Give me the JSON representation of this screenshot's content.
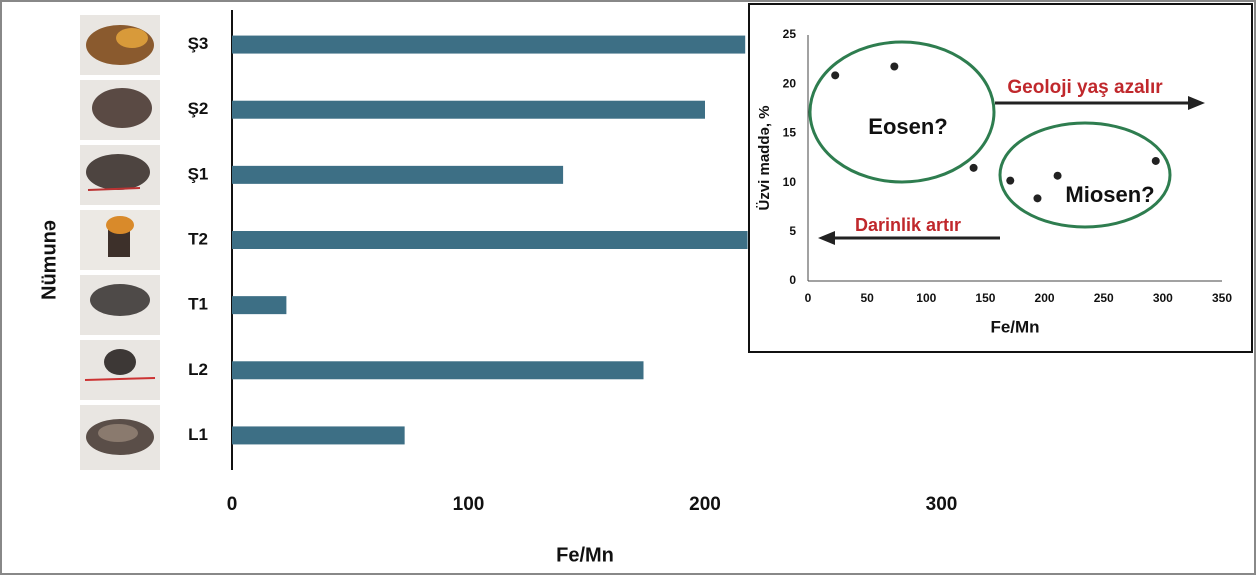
{
  "chart_data": [
    {
      "type": "bar",
      "orientation": "horizontal",
      "categories": [
        "Ş3",
        "Ş2",
        "Ş1",
        "T2",
        "T1",
        "L2",
        "L1"
      ],
      "values": [
        217,
        200,
        140,
        218,
        23,
        174,
        73
      ],
      "color": "#3d6f85",
      "xlim": [
        0,
        400
      ],
      "xticks": [
        0,
        100,
        200,
        300
      ],
      "xlabel": "Fe/Mn",
      "ylabel": "Nümunə"
    },
    {
      "type": "scatter",
      "x": [
        23,
        73,
        140,
        171,
        194,
        211,
        294
      ],
      "values": [
        20.9,
        21.8,
        11.5,
        10.2,
        8.4,
        10.7,
        12.2
      ],
      "color": "#222222",
      "xlim": [
        0,
        350
      ],
      "xticks": [
        0,
        50,
        100,
        150,
        200,
        250,
        300,
        350
      ],
      "ylim": [
        0,
        25
      ],
      "yticks": [
        0,
        5,
        10,
        15,
        20,
        25
      ],
      "xlabel": "Fe/Mn",
      "ylabel": "Üzvi maddə, %",
      "annotations": [
        "Eosen?",
        "Miosen?",
        "Geoloji yaş azalır",
        "Darinlik artır"
      ]
    }
  ]
}
